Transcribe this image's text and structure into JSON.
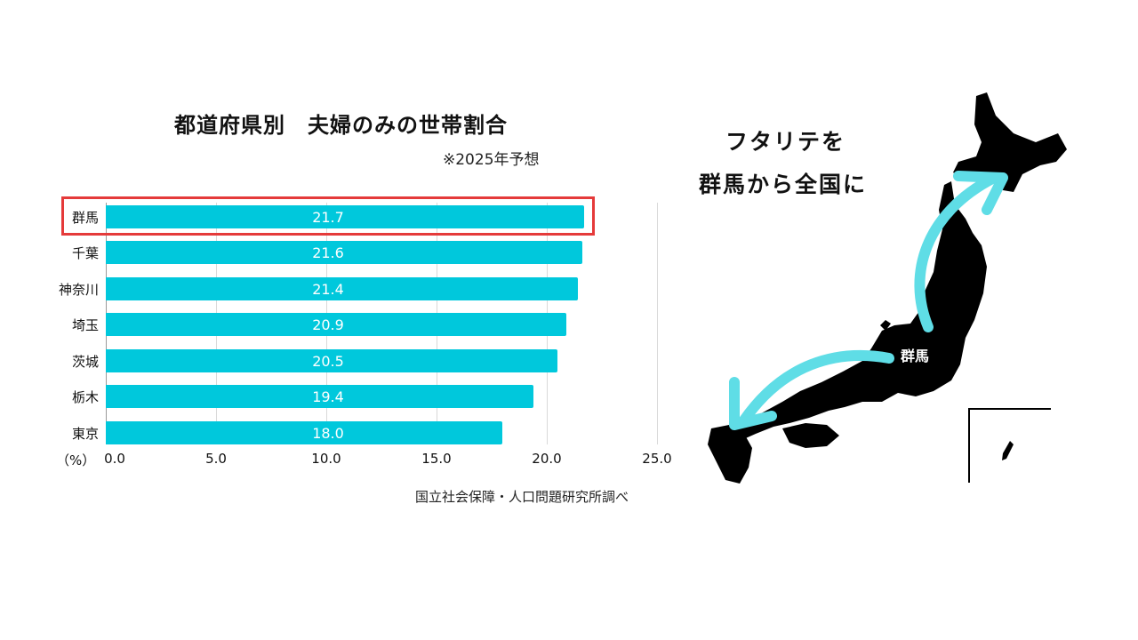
{
  "chart": {
    "title": "都道府県別　夫婦のみの世帯割合",
    "subtitle": "※2025年予想",
    "unit_label": "（%）",
    "source": "国立社会保障・人口問題研究所調べ",
    "bar_color": "#00c8dc",
    "highlight_color": "#e53a3a",
    "highlighted": "群馬"
  },
  "chart_data": {
    "type": "bar",
    "orientation": "horizontal",
    "title": "都道府県別　夫婦のみの世帯割合",
    "subtitle": "※2025年予想",
    "categories": [
      "群馬",
      "千葉",
      "神奈川",
      "埼玉",
      "茨城",
      "栃木",
      "東京"
    ],
    "values": [
      21.7,
      21.6,
      21.4,
      20.9,
      20.5,
      19.4,
      18.0
    ],
    "value_labels": [
      "21.7",
      "21.6",
      "21.4",
      "20.9",
      "20.5",
      "19.4",
      "18.0"
    ],
    "xlabel": "（%）",
    "ylabel": "",
    "xlim": [
      0,
      25
    ],
    "xticks": [
      "0.0",
      "5.0",
      "10.0",
      "15.0",
      "20.0",
      "25.0"
    ],
    "grid": true,
    "legend": "none",
    "source": "国立社会保障・人口問題研究所調べ",
    "highlight": {
      "category": "群馬",
      "style": "red outline box"
    }
  },
  "map": {
    "heading_line1": "フタリテを",
    "heading_line2": "群馬から全国に",
    "center_label": "群馬",
    "arrow_color": "#5fdde6",
    "land_color": "#000000"
  }
}
